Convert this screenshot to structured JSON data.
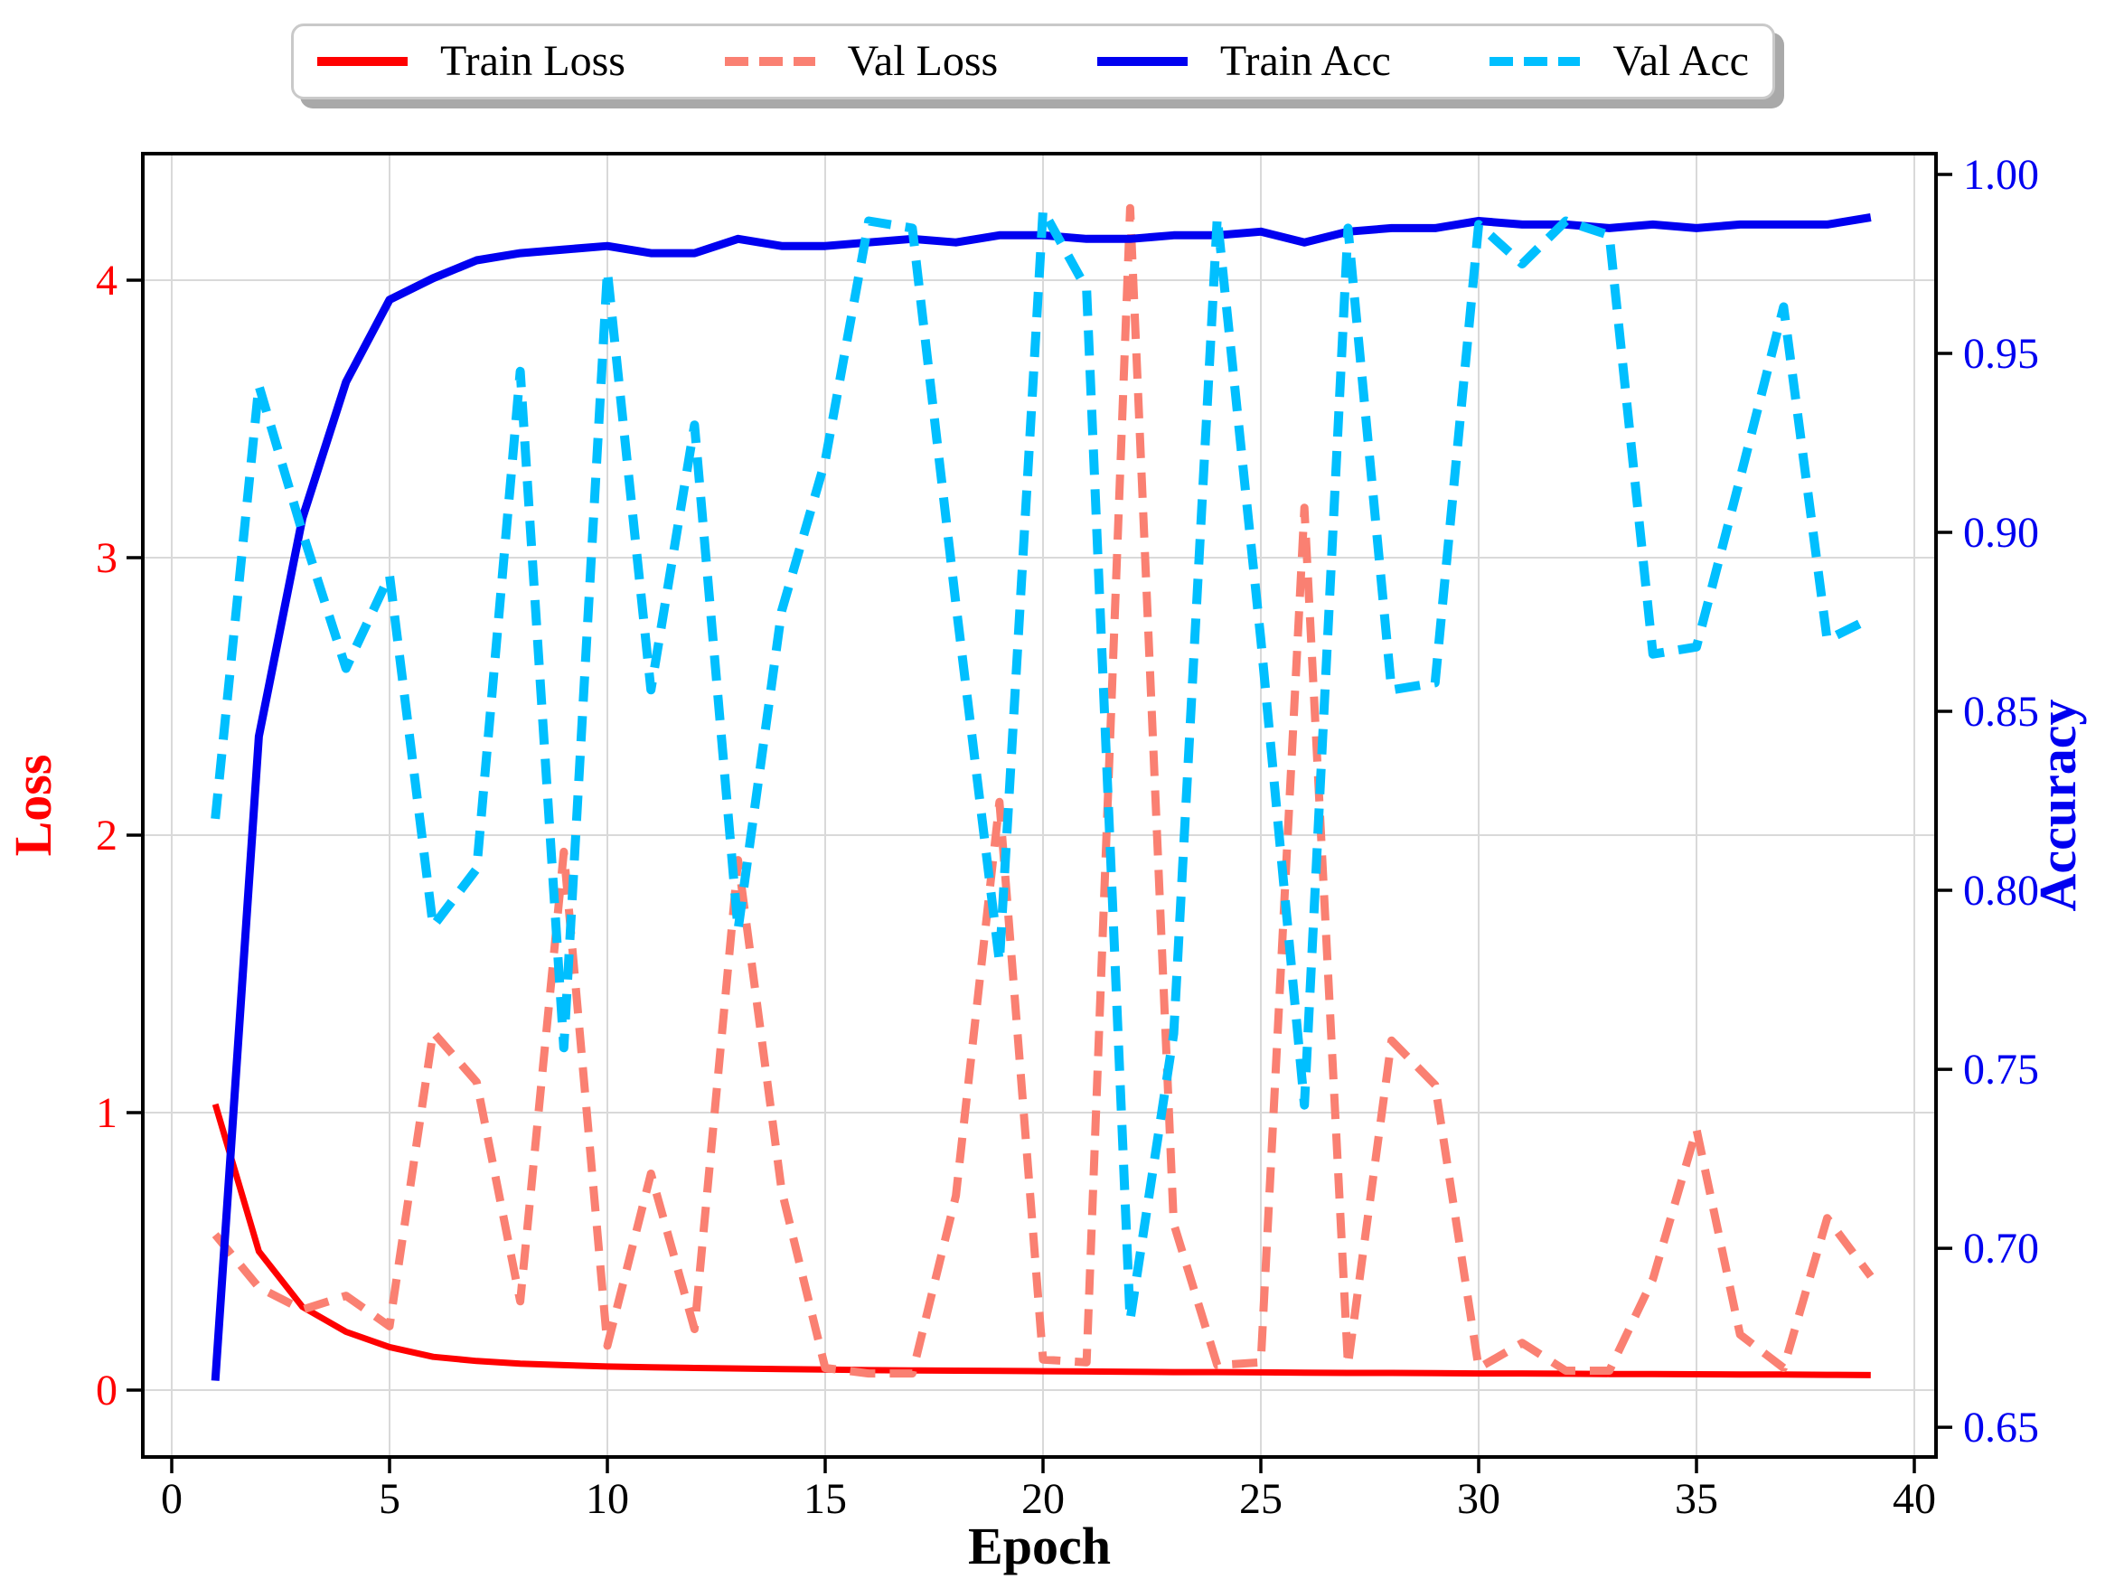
{
  "chart_data": {
    "type": "line",
    "title": "",
    "xlabel": "Epoch",
    "ylabel_left": "Loss",
    "ylabel_right": "Accuracy",
    "grid": true,
    "legend_position": "top center outside",
    "x": [
      1,
      2,
      3,
      4,
      5,
      6,
      7,
      8,
      9,
      10,
      11,
      12,
      13,
      14,
      15,
      16,
      17,
      18,
      19,
      20,
      21,
      22,
      23,
      24,
      25,
      26,
      27,
      28,
      29,
      30,
      31,
      32,
      33,
      34,
      35,
      36,
      37,
      38,
      39
    ],
    "x_ticks": [
      0,
      5,
      10,
      15,
      20,
      25,
      30,
      35,
      40
    ],
    "loss_ticks": [
      0,
      1,
      2,
      3,
      4
    ],
    "acc_ticks": [
      "0.65",
      "0.70",
      "0.75",
      "0.80",
      "0.85",
      "0.90",
      "0.95",
      "1.00"
    ],
    "xlim": [
      -0.664,
      40.498
    ],
    "loss_lim": [
      -0.241,
      4.456
    ],
    "acc_lim": [
      0.6417,
      1.0058
    ],
    "series": [
      {
        "name": "Train Loss",
        "axis": "loss",
        "color": "#ff0000",
        "style": "solid",
        "width": 7,
        "values": [
          1.03,
          0.5,
          0.3,
          0.21,
          0.155,
          0.12,
          0.105,
          0.095,
          0.09,
          0.085,
          0.082,
          0.08,
          0.078,
          0.076,
          0.074,
          0.072,
          0.071,
          0.07,
          0.069,
          0.068,
          0.067,
          0.066,
          0.065,
          0.065,
          0.064,
          0.063,
          0.062,
          0.062,
          0.061,
          0.06,
          0.06,
          0.059,
          0.058,
          0.058,
          0.057,
          0.056,
          0.056,
          0.055,
          0.054
        ]
      },
      {
        "name": "Val Loss",
        "axis": "loss",
        "color": "#fa8072",
        "style": "dashed",
        "width": 9,
        "values": [
          0.56,
          0.37,
          0.29,
          0.34,
          0.23,
          1.29,
          1.11,
          0.32,
          1.94,
          0.16,
          0.78,
          0.22,
          1.91,
          0.72,
          0.08,
          0.06,
          0.06,
          0.7,
          2.12,
          0.11,
          0.1,
          4.26,
          0.6,
          0.09,
          0.1,
          3.18,
          0.09,
          1.26,
          1.1,
          0.08,
          0.17,
          0.07,
          0.07,
          0.4,
          0.94,
          0.2,
          0.08,
          0.62,
          0.41
        ]
      },
      {
        "name": "Train Acc",
        "axis": "acc",
        "color": "#0000f0",
        "style": "solid",
        "width": 9,
        "values": [
          0.663,
          0.843,
          0.904,
          0.942,
          0.965,
          0.971,
          0.976,
          0.978,
          0.979,
          0.98,
          0.978,
          0.978,
          0.982,
          0.98,
          0.98,
          0.981,
          0.982,
          0.981,
          0.983,
          0.983,
          0.982,
          0.982,
          0.983,
          0.983,
          0.984,
          0.981,
          0.984,
          0.985,
          0.985,
          0.987,
          0.986,
          0.986,
          0.985,
          0.986,
          0.985,
          0.986,
          0.986,
          0.986,
          0.988
        ]
      },
      {
        "name": "Val Acc",
        "axis": "acc",
        "color": "#00bfff",
        "style": "dashed",
        "width": 10,
        "values": [
          0.82,
          0.941,
          0.9,
          0.862,
          0.888,
          0.79,
          0.806,
          0.945,
          0.756,
          0.973,
          0.856,
          0.93,
          0.789,
          0.878,
          0.92,
          0.987,
          0.985,
          0.88,
          0.78,
          0.99,
          0.968,
          0.68,
          0.76,
          0.988,
          0.87,
          0.74,
          0.985,
          0.856,
          0.858,
          0.986,
          0.975,
          0.987,
          0.983,
          0.866,
          0.868,
          0.915,
          0.963,
          0.87,
          0.876
        ]
      }
    ]
  },
  "legend": {
    "items": [
      {
        "label": "Train Loss",
        "color": "#ff0000",
        "style": "solid"
      },
      {
        "label": "Val Loss",
        "color": "#fa8072",
        "style": "dashed"
      },
      {
        "label": "Train Acc",
        "color": "#0000f0",
        "style": "solid"
      },
      {
        "label": "Val Acc",
        "color": "#00bfff",
        "style": "dashed"
      }
    ]
  },
  "colors": {
    "left_axis_accent": "#ff0000",
    "right_axis_accent": "#0000f0",
    "tick_text_x": "#000000",
    "grid": "#d9d9d9",
    "spine": "#000000",
    "legend_border": "#c9c9c9",
    "legend_shadow": "#a9a9a9",
    "background": "#ffffff"
  }
}
